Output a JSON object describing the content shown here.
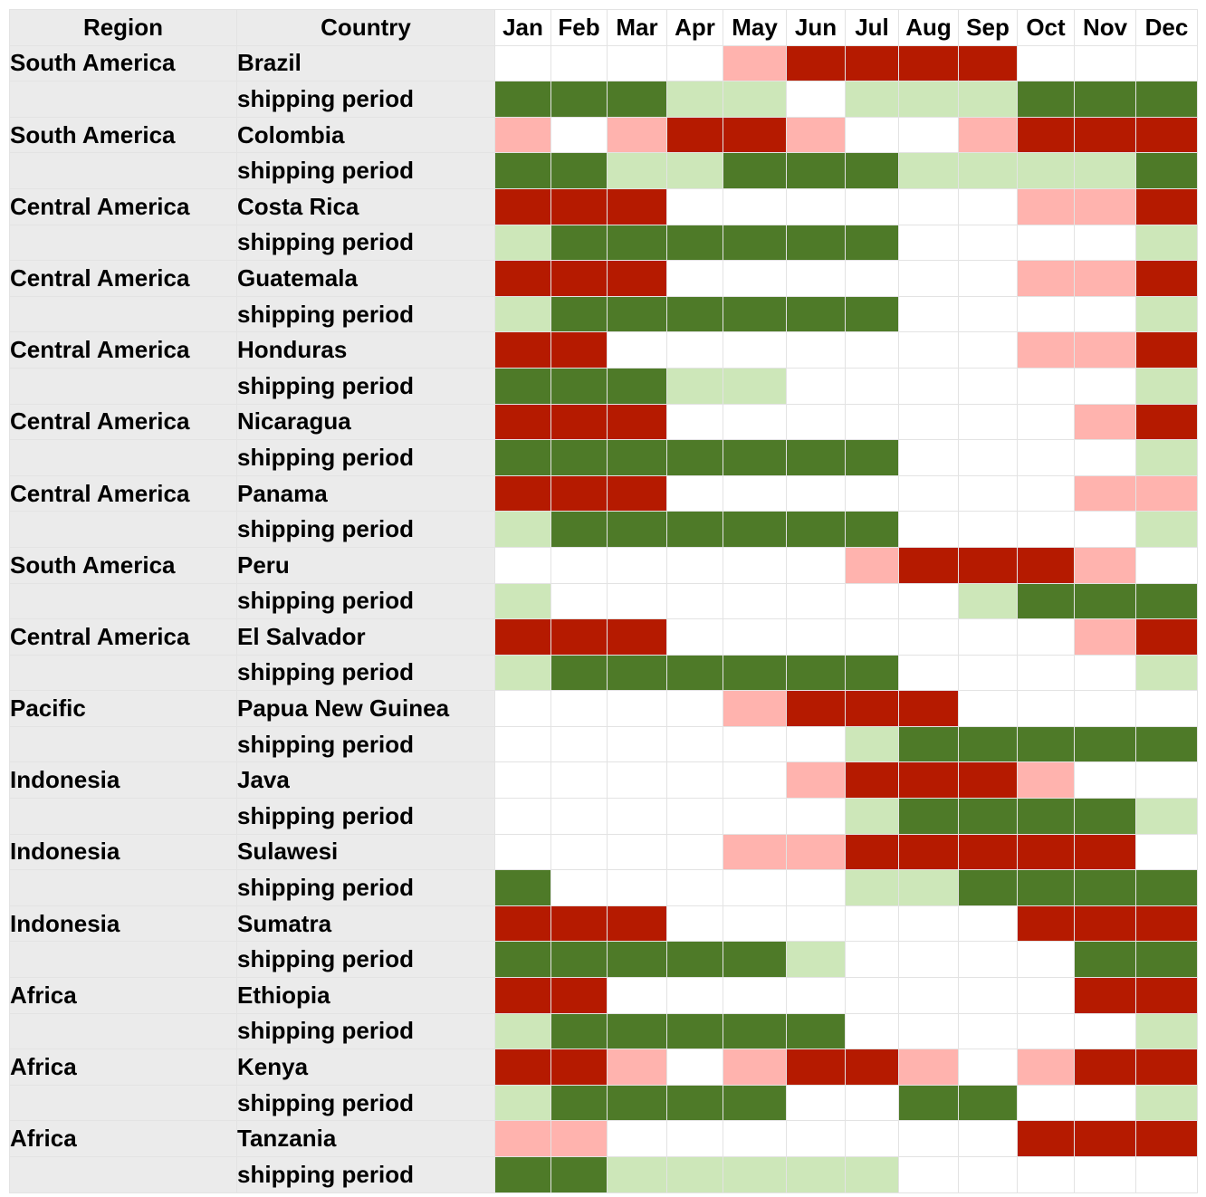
{
  "chart_data": {
    "type": "heatmap",
    "headers": {
      "region": "Region",
      "country": "Country"
    },
    "months": [
      "Jan",
      "Feb",
      "Mar",
      "Apr",
      "May",
      "Jun",
      "Jul",
      "Aug",
      "Sep",
      "Oct",
      "Nov",
      "Dec"
    ],
    "colors": {
      "harvest_peak": "#b51a00",
      "harvest_partial": "#ffb3ae",
      "shipping_peak": "#4e7a28",
      "shipping_partial": "#cde7b9",
      "none": "#ffffff",
      "label_background": "#ebebeb"
    },
    "value_legend": {
      "0": "none",
      "1": "partial",
      "2": "peak"
    },
    "rows": [
      {
        "region": "South America",
        "country": "Brazil",
        "kind": "harvest",
        "values": [
          0,
          0,
          0,
          0,
          1,
          2,
          2,
          2,
          2,
          0,
          0,
          0
        ]
      },
      {
        "region": "",
        "country": "shipping period",
        "kind": "shipping",
        "values": [
          2,
          2,
          2,
          1,
          1,
          0,
          1,
          1,
          1,
          2,
          2,
          2
        ]
      },
      {
        "region": "South America",
        "country": "Colombia",
        "kind": "harvest",
        "values": [
          1,
          0,
          1,
          2,
          2,
          1,
          0,
          0,
          1,
          2,
          2,
          2
        ]
      },
      {
        "region": "",
        "country": "shipping period",
        "kind": "shipping",
        "values": [
          2,
          2,
          1,
          1,
          2,
          2,
          2,
          1,
          1,
          1,
          1,
          2
        ]
      },
      {
        "region": "Central America",
        "country": "Costa Rica",
        "kind": "harvest",
        "values": [
          2,
          2,
          2,
          0,
          0,
          0,
          0,
          0,
          0,
          1,
          1,
          2
        ]
      },
      {
        "region": "",
        "country": "shipping period",
        "kind": "shipping",
        "values": [
          1,
          2,
          2,
          2,
          2,
          2,
          2,
          0,
          0,
          0,
          0,
          1
        ]
      },
      {
        "region": "Central America",
        "country": "Guatemala",
        "kind": "harvest",
        "values": [
          2,
          2,
          2,
          0,
          0,
          0,
          0,
          0,
          0,
          1,
          1,
          2
        ]
      },
      {
        "region": "",
        "country": "shipping period",
        "kind": "shipping",
        "values": [
          1,
          2,
          2,
          2,
          2,
          2,
          2,
          0,
          0,
          0,
          0,
          1
        ]
      },
      {
        "region": "Central America",
        "country": "Honduras",
        "kind": "harvest",
        "values": [
          2,
          2,
          0,
          0,
          0,
          0,
          0,
          0,
          0,
          1,
          1,
          2
        ]
      },
      {
        "region": "",
        "country": "shipping period",
        "kind": "shipping",
        "values": [
          2,
          2,
          2,
          1,
          1,
          0,
          0,
          0,
          0,
          0,
          0,
          1
        ]
      },
      {
        "region": "Central America",
        "country": "Nicaragua",
        "kind": "harvest",
        "values": [
          2,
          2,
          2,
          0,
          0,
          0,
          0,
          0,
          0,
          0,
          1,
          2
        ]
      },
      {
        "region": "",
        "country": "shipping period",
        "kind": "shipping",
        "values": [
          2,
          2,
          2,
          2,
          2,
          2,
          2,
          0,
          0,
          0,
          0,
          1
        ]
      },
      {
        "region": "Central America",
        "country": "Panama",
        "kind": "harvest",
        "values": [
          2,
          2,
          2,
          0,
          0,
          0,
          0,
          0,
          0,
          0,
          1,
          1
        ]
      },
      {
        "region": "",
        "country": "shipping period",
        "kind": "shipping",
        "values": [
          1,
          2,
          2,
          2,
          2,
          2,
          2,
          0,
          0,
          0,
          0,
          1
        ]
      },
      {
        "region": "South America",
        "country": "Peru",
        "kind": "harvest",
        "values": [
          0,
          0,
          0,
          0,
          0,
          0,
          1,
          2,
          2,
          2,
          1,
          0
        ]
      },
      {
        "region": "",
        "country": "shipping period",
        "kind": "shipping",
        "values": [
          1,
          0,
          0,
          0,
          0,
          0,
          0,
          0,
          1,
          2,
          2,
          2
        ]
      },
      {
        "region": "Central America",
        "country": "El Salvador",
        "kind": "harvest",
        "values": [
          2,
          2,
          2,
          0,
          0,
          0,
          0,
          0,
          0,
          0,
          1,
          2
        ]
      },
      {
        "region": "",
        "country": "shipping period",
        "kind": "shipping",
        "values": [
          1,
          2,
          2,
          2,
          2,
          2,
          2,
          0,
          0,
          0,
          0,
          1
        ]
      },
      {
        "region": "Pacific",
        "country": "Papua New Guinea",
        "kind": "harvest",
        "values": [
          0,
          0,
          0,
          0,
          1,
          2,
          2,
          2,
          0,
          0,
          0,
          0
        ]
      },
      {
        "region": "",
        "country": "shipping period",
        "kind": "shipping",
        "values": [
          0,
          0,
          0,
          0,
          0,
          0,
          1,
          2,
          2,
          2,
          2,
          2
        ]
      },
      {
        "region": "Indonesia",
        "country": "Java",
        "kind": "harvest",
        "values": [
          0,
          0,
          0,
          0,
          0,
          1,
          2,
          2,
          2,
          1,
          0,
          0
        ]
      },
      {
        "region": "",
        "country": "shipping period",
        "kind": "shipping",
        "values": [
          0,
          0,
          0,
          0,
          0,
          0,
          1,
          2,
          2,
          2,
          2,
          1
        ]
      },
      {
        "region": "Indonesia",
        "country": "Sulawesi",
        "kind": "harvest",
        "values": [
          0,
          0,
          0,
          0,
          1,
          1,
          2,
          2,
          2,
          2,
          2,
          0
        ]
      },
      {
        "region": "",
        "country": "shipping period",
        "kind": "shipping",
        "values": [
          2,
          0,
          0,
          0,
          0,
          0,
          1,
          1,
          2,
          2,
          2,
          2
        ]
      },
      {
        "region": "Indonesia",
        "country": "Sumatra",
        "kind": "harvest",
        "values": [
          2,
          2,
          2,
          0,
          0,
          0,
          0,
          0,
          0,
          2,
          2,
          2
        ]
      },
      {
        "region": "",
        "country": "shipping period",
        "kind": "shipping",
        "values": [
          2,
          2,
          2,
          2,
          2,
          1,
          0,
          0,
          0,
          0,
          2,
          2
        ]
      },
      {
        "region": "Africa",
        "country": "Ethiopia",
        "kind": "harvest",
        "values": [
          2,
          2,
          0,
          0,
          0,
          0,
          0,
          0,
          0,
          0,
          2,
          2
        ]
      },
      {
        "region": "",
        "country": "shipping period",
        "kind": "shipping",
        "values": [
          1,
          2,
          2,
          2,
          2,
          2,
          0,
          0,
          0,
          0,
          0,
          1
        ]
      },
      {
        "region": "Africa",
        "country": "Kenya",
        "kind": "harvest",
        "values": [
          2,
          2,
          1,
          0,
          1,
          2,
          2,
          1,
          0,
          1,
          2,
          2
        ]
      },
      {
        "region": "",
        "country": "shipping period",
        "kind": "shipping",
        "values": [
          1,
          2,
          2,
          2,
          2,
          0,
          0,
          2,
          2,
          0,
          0,
          1
        ]
      },
      {
        "region": "Africa",
        "country": "Tanzania",
        "kind": "harvest",
        "values": [
          1,
          1,
          0,
          0,
          0,
          0,
          0,
          0,
          0,
          2,
          2,
          2
        ]
      },
      {
        "region": "",
        "country": "shipping period",
        "kind": "shipping",
        "values": [
          2,
          2,
          1,
          1,
          1,
          1,
          1,
          0,
          0,
          0,
          0,
          0
        ]
      }
    ]
  }
}
